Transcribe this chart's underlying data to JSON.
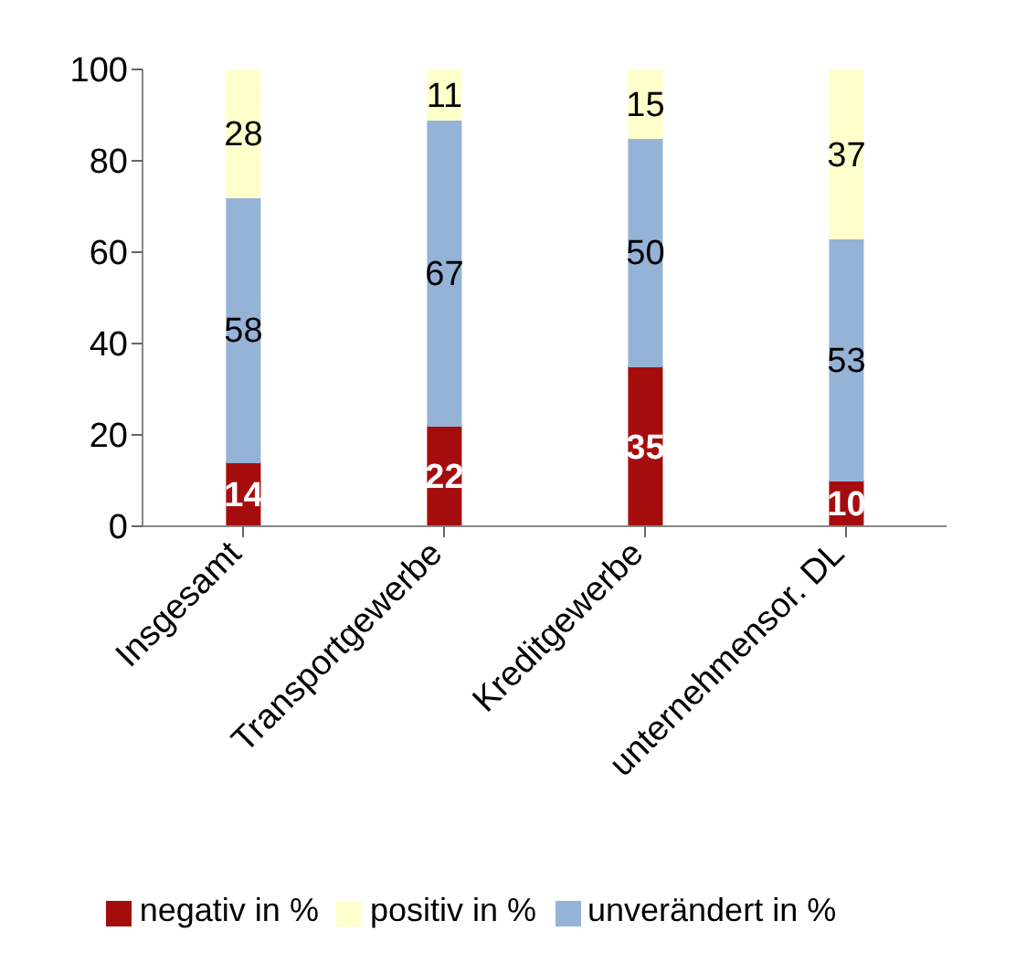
{
  "chart_data": {
    "type": "bar",
    "stacked": true,
    "categories": [
      "Insgesamt",
      "Transportgewerbe",
      "Kreditgewerbe",
      "unternehmensor. DL"
    ],
    "series": [
      {
        "name": "negativ in %",
        "color": "#a50d0d",
        "values": [
          14,
          22,
          35,
          10
        ]
      },
      {
        "name": "unverändert in %",
        "color": "#95b3d7",
        "values": [
          58,
          67,
          50,
          53
        ]
      },
      {
        "name": "positiv in %",
        "color": "#ffffcc",
        "values": [
          28,
          11,
          15,
          37
        ]
      }
    ],
    "ylim": [
      0,
      100
    ],
    "yticks": [
      0,
      20,
      40,
      60,
      80,
      100
    ],
    "grid": false,
    "legend": "bottom",
    "data_labels": true
  }
}
